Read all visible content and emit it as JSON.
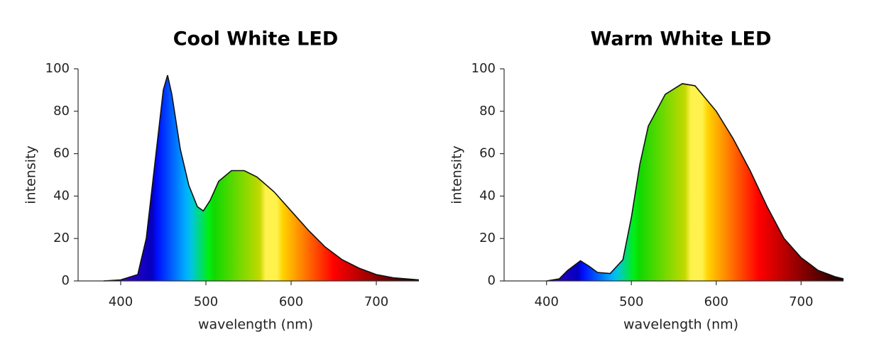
{
  "chart_data": [
    {
      "type": "area",
      "title": "Cool White LED",
      "xlabel": "wavelength (nm)",
      "ylabel": "intensity",
      "x": [
        380,
        400,
        420,
        430,
        440,
        450,
        455,
        460,
        470,
        480,
        490,
        497,
        505,
        515,
        530,
        545,
        560,
        580,
        600,
        620,
        640,
        660,
        680,
        700,
        720,
        750
      ],
      "values": [
        0,
        0.5,
        3,
        20,
        55,
        90,
        97,
        88,
        62,
        45,
        35,
        33,
        38,
        47,
        52,
        52,
        49,
        42,
        33,
        24,
        16,
        10,
        6,
        3,
        1.5,
        0.5
      ],
      "xlim": [
        350,
        750
      ],
      "ylim": [
        0,
        100
      ],
      "xticks": [
        400,
        500,
        600,
        700
      ],
      "yticks": [
        0,
        20,
        40,
        60,
        80,
        100
      ],
      "fill": "spectrum"
    },
    {
      "type": "area",
      "title": "Warm White LED",
      "xlabel": "wavelength (nm)",
      "ylabel": "intensity",
      "x": [
        400,
        415,
        425,
        440,
        450,
        460,
        475,
        490,
        500,
        510,
        520,
        540,
        560,
        575,
        600,
        620,
        640,
        660,
        680,
        700,
        720,
        740,
        750
      ],
      "values": [
        0,
        1,
        5,
        9.5,
        7,
        4,
        3.5,
        10,
        30,
        55,
        73,
        88,
        93,
        92,
        80,
        67,
        52,
        35,
        20,
        11,
        5,
        2,
        1
      ],
      "xlim": [
        350,
        750
      ],
      "ylim": [
        0,
        100
      ],
      "xticks": [
        400,
        500,
        600,
        700
      ],
      "yticks": [
        0,
        20,
        40,
        60,
        80,
        100
      ],
      "fill": "spectrum"
    }
  ]
}
